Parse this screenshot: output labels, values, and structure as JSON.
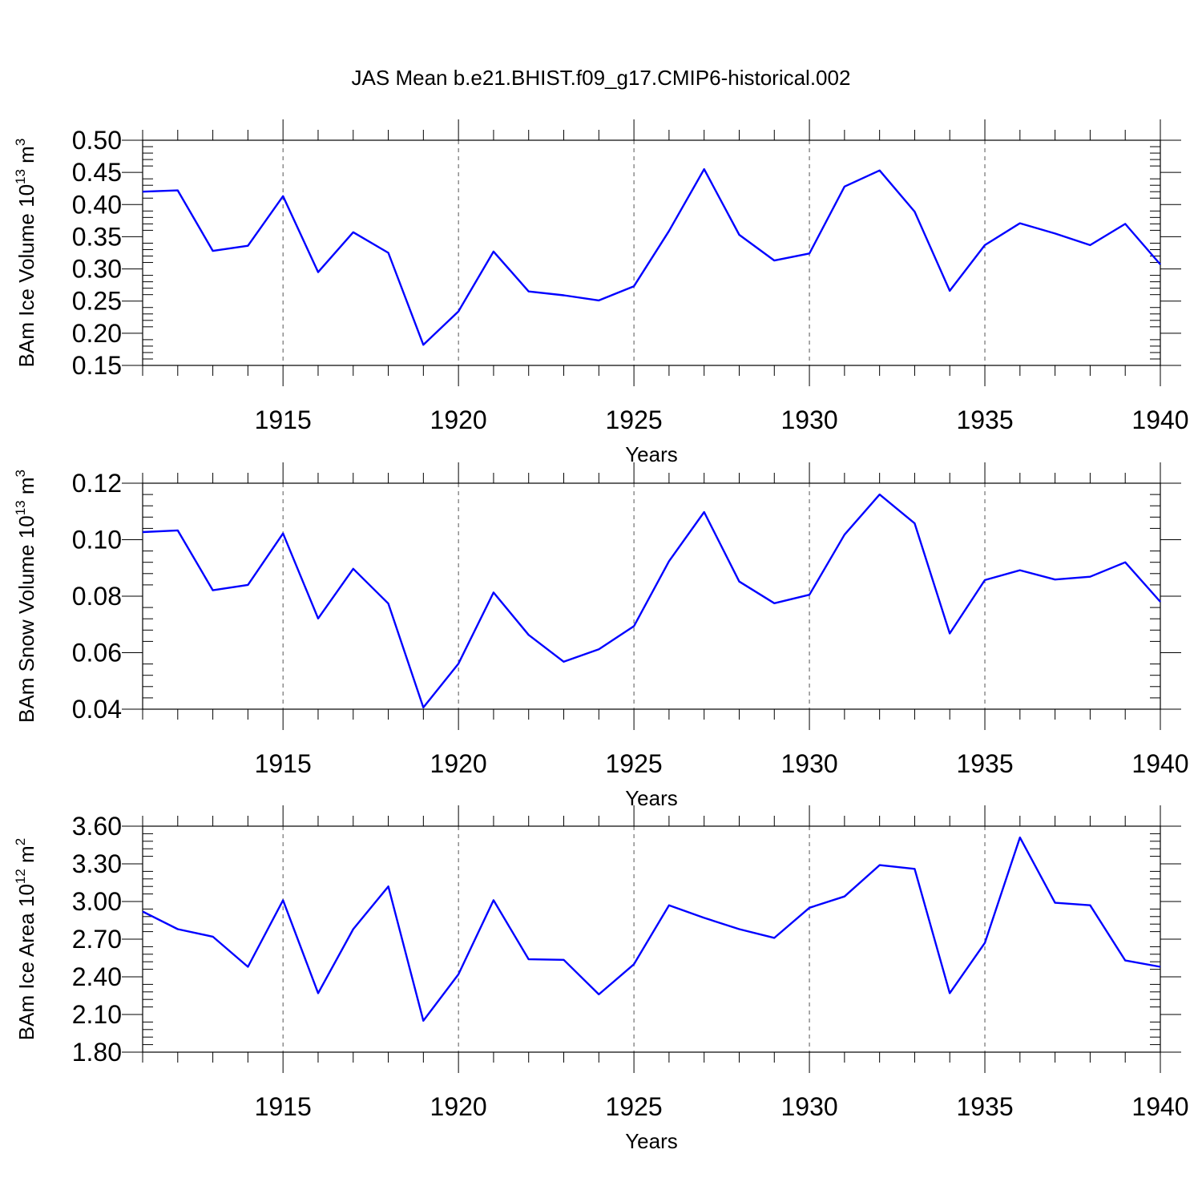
{
  "title": "JAS Mean b.e21.BHIST.f09_g17.CMIP6-historical.002",
  "colors": {
    "series": "#0000ff",
    "axes": "#000000",
    "grid": "#555555"
  },
  "chart_data": [
    {
      "type": "line",
      "xlabel": "Years",
      "ylabel": {
        "base": "BAm Ice Volume 10",
        "exp": "13",
        "unit": " m",
        "unit_exp": "3"
      },
      "xlim": [
        1911,
        1940
      ],
      "ylim": [
        0.15,
        0.5
      ],
      "xticks": [
        "1915",
        "1920",
        "1925",
        "1930",
        "1935",
        "1940"
      ],
      "yticks": [
        "0.15",
        "0.20",
        "0.25",
        "0.30",
        "0.35",
        "0.40",
        "0.45",
        "0.50"
      ],
      "grid": "vertical dashed at major x ticks",
      "x": [
        1911,
        1912,
        1913,
        1914,
        1915,
        1916,
        1917,
        1918,
        1919,
        1920,
        1921,
        1922,
        1923,
        1924,
        1925,
        1926,
        1927,
        1928,
        1929,
        1930,
        1931,
        1932,
        1933,
        1934,
        1935,
        1936,
        1937,
        1938,
        1939,
        1940
      ],
      "values": [
        0.42,
        0.422,
        0.328,
        0.336,
        0.413,
        0.295,
        0.357,
        0.325,
        0.182,
        0.234,
        0.327,
        0.265,
        0.259,
        0.251,
        0.273,
        0.359,
        0.455,
        0.353,
        0.313,
        0.324,
        0.428,
        0.453,
        0.389,
        0.266,
        0.337,
        0.371,
        0.355,
        0.337,
        0.37,
        0.307
      ]
    },
    {
      "type": "line",
      "xlabel": "Years",
      "ylabel": {
        "base": "BAm Snow Volume 10",
        "exp": "13",
        "unit": " m",
        "unit_exp": "3"
      },
      "xlim": [
        1911,
        1940
      ],
      "ylim": [
        0.04,
        0.12
      ],
      "xticks": [
        "1915",
        "1920",
        "1925",
        "1930",
        "1935",
        "1940"
      ],
      "yticks": [
        "0.04",
        "0.06",
        "0.08",
        "0.10",
        "0.12"
      ],
      "grid": "vertical dashed at major x ticks",
      "x": [
        1911,
        1912,
        1913,
        1914,
        1915,
        1916,
        1917,
        1918,
        1919,
        1920,
        1921,
        1922,
        1923,
        1924,
        1925,
        1926,
        1927,
        1928,
        1929,
        1930,
        1931,
        1932,
        1933,
        1934,
        1935,
        1936,
        1937,
        1938,
        1939,
        1940
      ],
      "values": [
        0.1027,
        0.1033,
        0.0821,
        0.084,
        0.1022,
        0.0721,
        0.0897,
        0.0774,
        0.0406,
        0.0561,
        0.0813,
        0.0663,
        0.0568,
        0.0612,
        0.0694,
        0.0924,
        0.1098,
        0.0852,
        0.0775,
        0.0805,
        0.1018,
        0.116,
        0.1058,
        0.0668,
        0.0857,
        0.0892,
        0.0859,
        0.0869,
        0.092,
        0.078
      ]
    },
    {
      "type": "line",
      "xlabel": "Years",
      "ylabel": {
        "base": "BAm Ice Area 10",
        "exp": "12",
        "unit": " m",
        "unit_exp": "2"
      },
      "xlim": [
        1911,
        1940
      ],
      "ylim": [
        1.8,
        3.6
      ],
      "xticks": [
        "1915",
        "1920",
        "1925",
        "1930",
        "1935",
        "1940"
      ],
      "yticks": [
        "1.80",
        "2.10",
        "2.40",
        "2.70",
        "3.00",
        "3.30",
        "3.60"
      ],
      "grid": "vertical dashed at major x ticks",
      "x": [
        1911,
        1912,
        1913,
        1914,
        1915,
        1916,
        1917,
        1918,
        1919,
        1920,
        1921,
        1922,
        1923,
        1924,
        1925,
        1926,
        1927,
        1928,
        1929,
        1930,
        1931,
        1932,
        1933,
        1934,
        1935,
        1936,
        1937,
        1938,
        1939,
        1940
      ],
      "values": [
        2.92,
        2.78,
        2.72,
        2.48,
        3.01,
        2.27,
        2.78,
        3.12,
        2.05,
        2.42,
        3.01,
        2.54,
        2.535,
        2.26,
        2.5,
        2.97,
        2.87,
        2.78,
        2.71,
        2.95,
        3.04,
        3.29,
        3.26,
        2.27,
        2.67,
        3.51,
        2.99,
        2.97,
        2.53,
        2.48
      ]
    }
  ]
}
